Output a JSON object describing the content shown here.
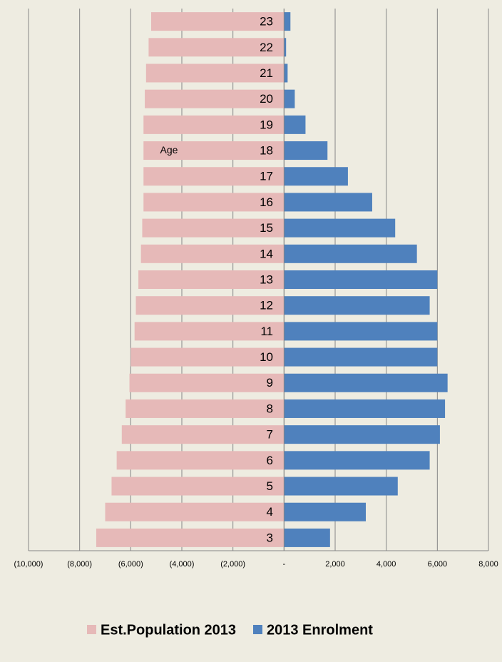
{
  "chart_data": {
    "type": "bar",
    "orientation": "horizontal",
    "annotation": "Age",
    "categories": [
      "3",
      "4",
      "5",
      "6",
      "7",
      "8",
      "9",
      "10",
      "11",
      "12",
      "13",
      "14",
      "15",
      "16",
      "17",
      "18",
      "19",
      "20",
      "21",
      "22",
      "23"
    ],
    "series": [
      {
        "name": "Est.Population 2013",
        "color": "#e6b9b8",
        "values": [
          -7350,
          -7000,
          -6750,
          -6550,
          -6350,
          -6200,
          -6050,
          -6000,
          -5850,
          -5800,
          -5700,
          -5600,
          -5550,
          -5500,
          -5500,
          -5500,
          -5500,
          -5450,
          -5400,
          -5300,
          -5200
        ]
      },
      {
        "name": "2013 Enrolment",
        "color": "#4f81bd",
        "values": [
          1800,
          3200,
          4450,
          5700,
          6100,
          6300,
          6400,
          6000,
          6000,
          5700,
          6000,
          5200,
          4350,
          3450,
          2500,
          1700,
          840,
          420,
          140,
          80,
          250
        ]
      }
    ],
    "xlim": [
      -10000,
      8000
    ],
    "xticks": [
      {
        "value": -10000,
        "label": "(10,000)"
      },
      {
        "value": -8000,
        "label": "(8,000)"
      },
      {
        "value": -6000,
        "label": "(6,000)"
      },
      {
        "value": -4000,
        "label": "(4,000)"
      },
      {
        "value": -2000,
        "label": "(2,000)"
      },
      {
        "value": 0,
        "label": "-"
      },
      {
        "value": 2000,
        "label": "2,000"
      },
      {
        "value": 4000,
        "label": "4,000"
      },
      {
        "value": 6000,
        "label": "6,000"
      },
      {
        "value": 8000,
        "label": "8,000"
      }
    ],
    "grid": true,
    "legend": "bottom"
  }
}
